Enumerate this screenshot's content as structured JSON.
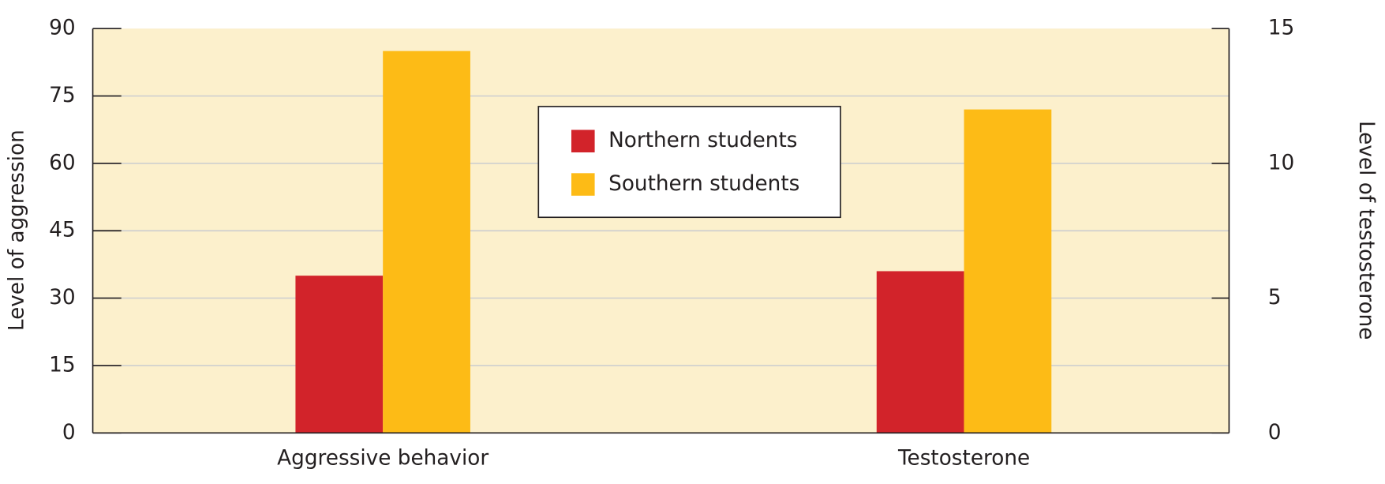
{
  "chart_data": {
    "type": "bar",
    "categories": [
      "Aggressive behavior",
      "Testosterone"
    ],
    "category_axis": [
      "y",
      "y2"
    ],
    "series": [
      {
        "name": "Northern students",
        "color": "#d2232a",
        "values": [
          35,
          6
        ]
      },
      {
        "name": "Southern students",
        "color": "#fdbb16",
        "values": [
          85,
          12
        ]
      }
    ],
    "y_label": "Level of aggression",
    "y2_label": "Level of testosterone",
    "ylim": [
      0,
      90
    ],
    "yticks": [
      0,
      15,
      30,
      45,
      60,
      75,
      90
    ],
    "y2lim": [
      0,
      15
    ],
    "y2ticks": [
      0,
      5,
      10,
      15
    ],
    "grid": true,
    "legend": "upper center",
    "background": "#fcf0cc"
  }
}
